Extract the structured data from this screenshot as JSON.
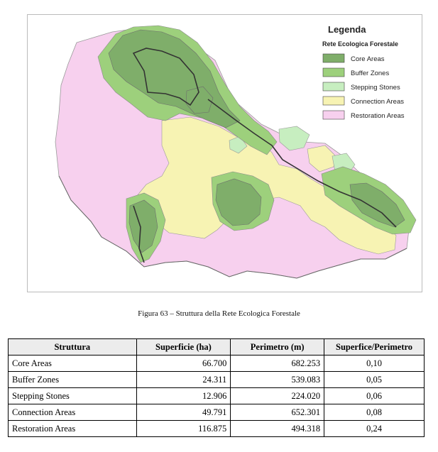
{
  "legend": {
    "title": "Legenda",
    "subtitle": "Rete Ecologica Forestale",
    "items": [
      {
        "label": "Core Areas",
        "color": "#7fae6a"
      },
      {
        "label": "Buffer Zones",
        "color": "#9dd07c"
      },
      {
        "label": "Stepping Stones",
        "color": "#c7eec0"
      },
      {
        "label": "Connection Areas",
        "color": "#f7f3b3"
      },
      {
        "label": "Restoration Areas",
        "color": "#f7d0ee"
      }
    ]
  },
  "caption": "Figura 63 – Struttura della Rete Ecologica Forestale",
  "table": {
    "headers": [
      "Struttura",
      "Superficie (ha)",
      "Perimetro (m)",
      "Superfice/Perimetro"
    ],
    "rows": [
      [
        "Core Areas",
        "66.700",
        "682.253",
        "0,10"
      ],
      [
        "Buffer Zones",
        "24.311",
        "539.083",
        "0,05"
      ],
      [
        "Stepping Stones",
        "12.906",
        "224.020",
        "0,06"
      ],
      [
        "Connection Areas",
        "49.791",
        "652.301",
        "0,08"
      ],
      [
        "Restoration Areas",
        "116.875",
        "494.318",
        "0,24"
      ]
    ]
  },
  "colors": {
    "sea": "#ffffff",
    "boundary": "#333333"
  }
}
